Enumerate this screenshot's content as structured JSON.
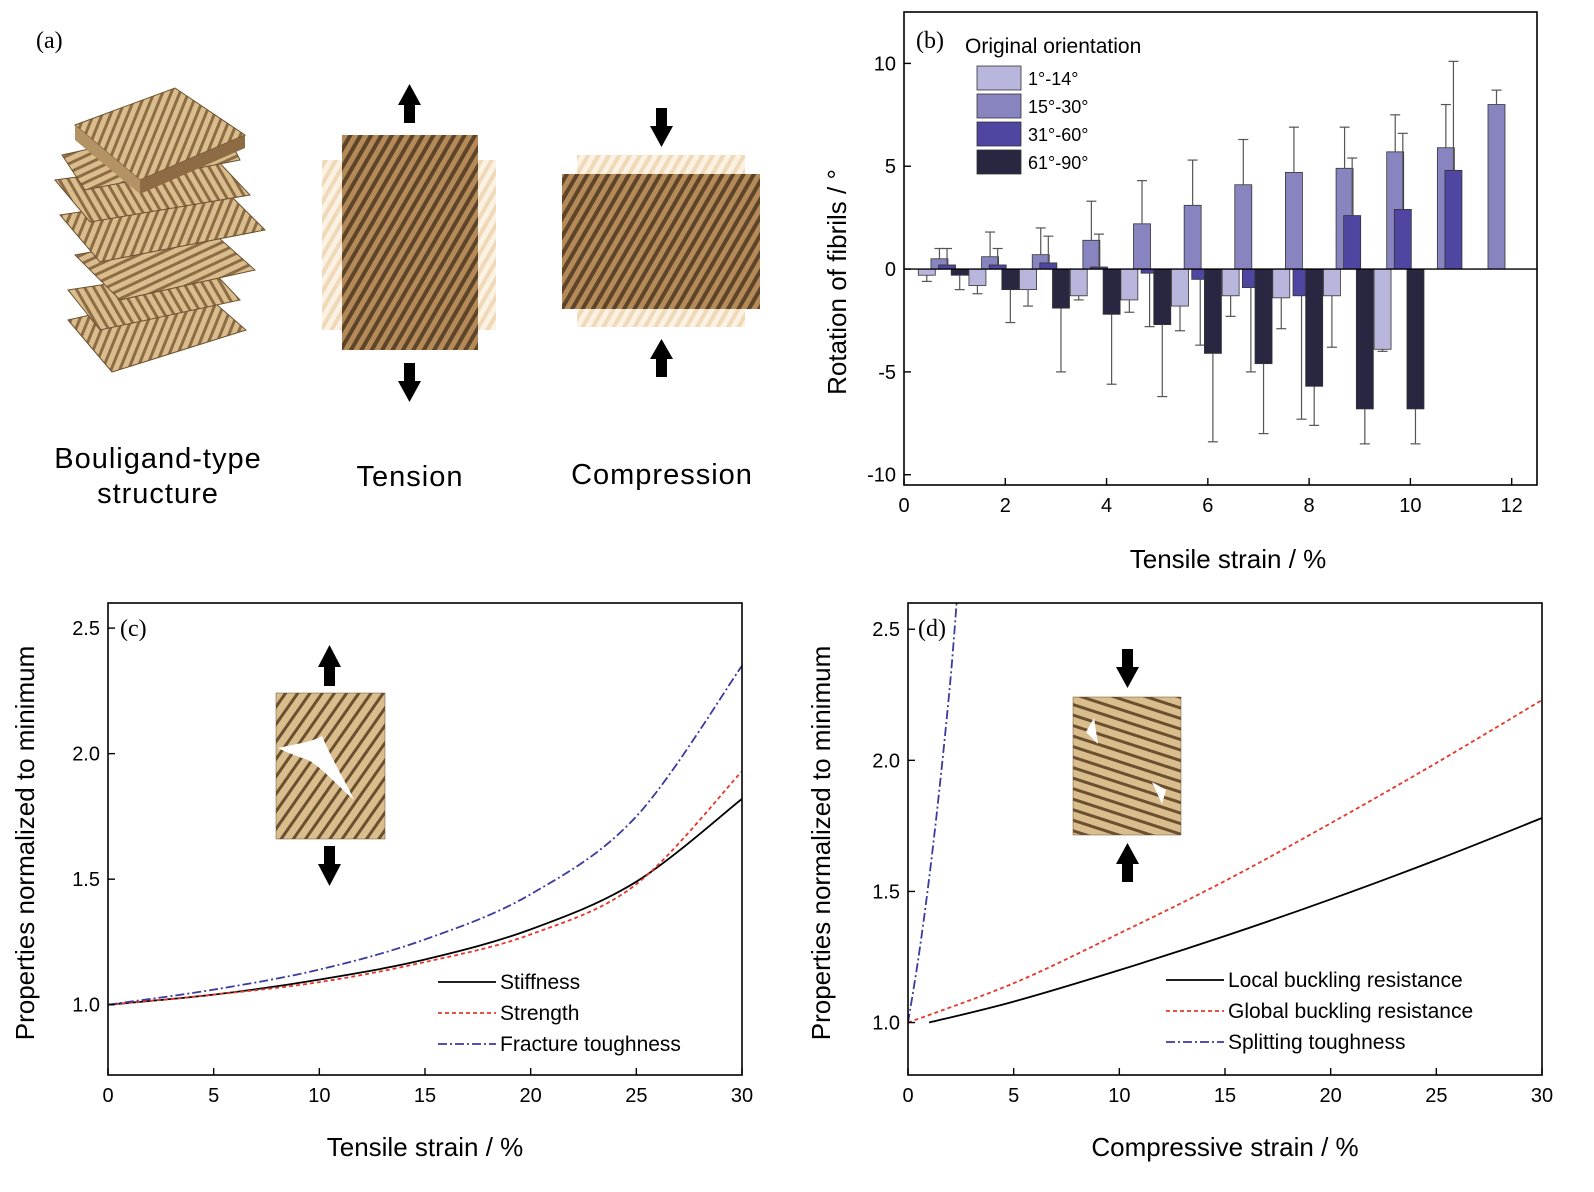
{
  "panel_a": {
    "label": "(a)",
    "caption_bouligand_1": "Bouligand-type",
    "caption_bouligand_2": "structure",
    "caption_tension": "Tension",
    "caption_compression": "Compression",
    "colors": {
      "fibril_light": "#d8bc8a",
      "fibril_dark": "#8b6b44",
      "ghost": "#f3e3c8"
    }
  },
  "chart_data": [
    {
      "panel": "(b)",
      "type": "bar",
      "xlabel": "Tensile strain / %",
      "ylabel": "Rotation of fibrils / °",
      "xlim": [
        0,
        12.5
      ],
      "ylim": [
        -10.5,
        12.5
      ],
      "xticks": [
        0,
        2,
        4,
        6,
        8,
        10,
        12
      ],
      "yticks": [
        -10,
        -5,
        0,
        5,
        10
      ],
      "legend_title": "Original orientation",
      "legend_position": "top-left",
      "series": [
        {
          "name": "1°-14°",
          "color": "#b8b6dc",
          "x": [
            0.45,
            1.45,
            2.45,
            3.45,
            4.45,
            5.45,
            6.45,
            7.45,
            8.45,
            9.45
          ],
          "values": [
            -0.3,
            -0.8,
            -1.0,
            -1.3,
            -1.5,
            -1.8,
            -1.3,
            -1.4,
            -1.3,
            -3.9
          ],
          "errors": [
            0.3,
            0.4,
            0.8,
            0.2,
            0.6,
            1.2,
            1.0,
            1.5,
            2.5,
            0.1
          ]
        },
        {
          "name": "15°-30°",
          "color": "#8884c0",
          "x": [
            0.7,
            1.7,
            2.7,
            3.7,
            4.7,
            5.7,
            6.7,
            7.7,
            8.7,
            9.7,
            10.7,
            11.7
          ],
          "values": [
            0.5,
            0.6,
            0.7,
            1.4,
            2.2,
            3.1,
            4.1,
            4.7,
            4.9,
            5.7,
            5.9,
            8.0
          ],
          "errors": [
            0.5,
            1.2,
            1.3,
            1.9,
            2.1,
            2.2,
            2.2,
            2.2,
            2.0,
            1.8,
            2.1,
            0.7
          ]
        },
        {
          "name": "31°-60°",
          "color": "#4e46a0",
          "x": [
            0.85,
            1.85,
            2.85,
            3.85,
            4.85,
            5.85,
            6.85,
            7.85,
            8.85,
            9.85,
            10.85
          ],
          "values": [
            0.2,
            0.2,
            0.3,
            0.1,
            -0.2,
            -0.5,
            -0.9,
            -1.3,
            2.6,
            2.9,
            4.8
          ],
          "errors": [
            0.8,
            0.8,
            1.3,
            1.6,
            2.6,
            3.2,
            4.1,
            6.0,
            2.8,
            3.7,
            5.3
          ]
        },
        {
          "name": "61°-90°",
          "color": "#282640",
          "x": [
            1.1,
            2.1,
            3.1,
            4.1,
            5.1,
            6.1,
            7.1,
            8.1,
            9.1,
            10.1
          ],
          "values": [
            -0.3,
            -1.0,
            -1.9,
            -2.2,
            -2.7,
            -4.1,
            -4.6,
            -5.7,
            -6.8,
            -6.8
          ],
          "errors": [
            0.7,
            1.6,
            3.1,
            3.4,
            3.5,
            4.3,
            3.4,
            1.9,
            1.7,
            1.7
          ]
        }
      ]
    },
    {
      "panel": "(c)",
      "type": "line",
      "xlabel": "Tensile strain / %",
      "ylabel": "Properties normalized to minimum",
      "xlim": [
        0,
        30
      ],
      "ylim": [
        0.72,
        2.6
      ],
      "xticks": [
        0,
        5,
        10,
        15,
        20,
        25,
        30
      ],
      "yticks": [
        1.0,
        1.5,
        2.0,
        2.5
      ],
      "legend_position": "bottom-right",
      "series": [
        {
          "name": "Stiffness",
          "color": "#000000",
          "dash": "",
          "x": [
            0,
            5,
            10,
            15,
            20,
            25,
            30
          ],
          "values": [
            1.0,
            1.04,
            1.1,
            1.18,
            1.3,
            1.49,
            1.82
          ]
        },
        {
          "name": "Strength",
          "color": "#e8372a",
          "dash": "4,3",
          "x": [
            0,
            5,
            10,
            15,
            20,
            25,
            30
          ],
          "values": [
            1.0,
            1.04,
            1.09,
            1.17,
            1.28,
            1.48,
            1.93
          ]
        },
        {
          "name": "Fracture toughness",
          "color": "#3a3aa0",
          "dash": "9,3,2,3",
          "x": [
            0,
            5,
            10,
            15,
            20,
            25,
            30
          ],
          "values": [
            1.0,
            1.06,
            1.14,
            1.26,
            1.44,
            1.75,
            2.35
          ]
        }
      ]
    },
    {
      "panel": "(d)",
      "type": "line",
      "xlabel": "Compressive strain / %",
      "ylabel": "Properties normalized to minimum",
      "xlim": [
        0,
        30
      ],
      "ylim": [
        0.8,
        2.6
      ],
      "xticks": [
        0,
        5,
        10,
        15,
        20,
        25,
        30
      ],
      "yticks": [
        1.0,
        1.5,
        2.0,
        2.5
      ],
      "legend_position": "bottom-right",
      "series": [
        {
          "name": "Local buckling resistance",
          "color": "#000000",
          "dash": "",
          "x": [
            1,
            5,
            10,
            15,
            20,
            25,
            30
          ],
          "values": [
            1.0,
            1.08,
            1.2,
            1.33,
            1.47,
            1.62,
            1.78
          ]
        },
        {
          "name": "Global buckling resistance",
          "color": "#e8372a",
          "dash": "4,3",
          "x": [
            0,
            5,
            10,
            15,
            20,
            25,
            30
          ],
          "values": [
            1.0,
            1.15,
            1.34,
            1.54,
            1.76,
            1.99,
            2.23
          ]
        },
        {
          "name": "Splitting toughness",
          "color": "#3a3aa0",
          "dash": "9,3,2,3",
          "x": [
            0,
            0.5,
            1.0,
            1.5,
            2.0,
            2.3
          ],
          "values": [
            1.0,
            1.25,
            1.55,
            1.9,
            2.3,
            2.6
          ]
        }
      ]
    }
  ]
}
